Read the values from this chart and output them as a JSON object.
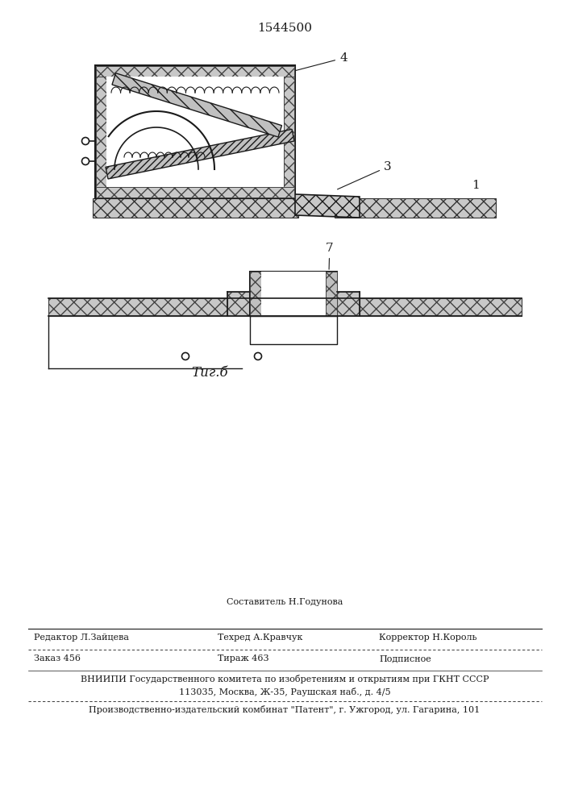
{
  "patent_number": "1544500",
  "fig_label": "Τиг.б",
  "footer": {
    "sestavitel": "Составитель Н.Годунова",
    "redaktor": "Редактор Л.Зайцева",
    "tehred": "Техред А.Кравчук",
    "korrektor": "Корректор Н.Король",
    "zakaz": "Заказ 456",
    "tirazh": "Тираж 463",
    "podpisnoe": "Подписное",
    "vnipi_line1": "ВНИИПИ Государственного комитета по изобретениям и открытиям при ГКНТ СССР",
    "vnipi_line2": "113035, Москва, Ж-35, Раушская наб., д. 4/5",
    "proizv": "Производственно-издательский комбинат \"Патент\", г. Ужгород, ул. Гагарина, 101"
  }
}
